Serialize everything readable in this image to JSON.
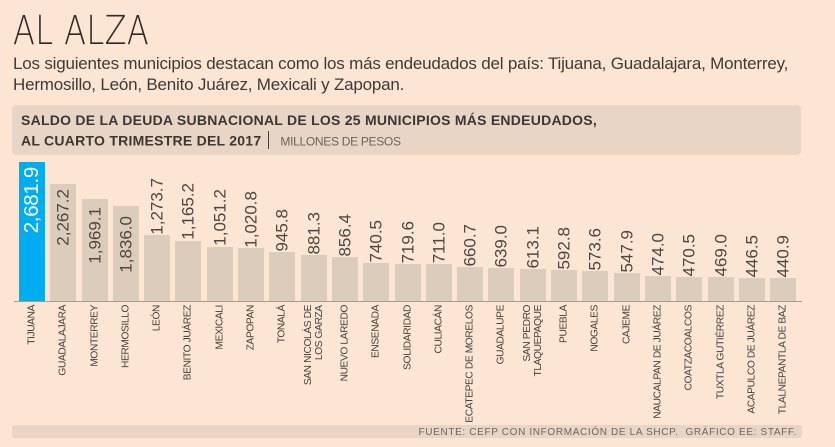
{
  "title": "AL ALZA",
  "intro": {
    "line1": "Los siguientes municipios destacan como los más endeudados del país: Tijuana, Guadalajara, Monterrey,",
    "line2": "Hermosillo, León, Benito Juárez, Mexicali y Zapopan."
  },
  "header": {
    "line1": "SALDO DE LA DEUDA SUBNACIONAL DE LOS 25 MUNICIPIOS MÁS ENDEUDADOS,",
    "line2_bold": "AL CUARTO TRIMESTRE DEL 2017",
    "units": "MILLONES DE PESOS"
  },
  "footer": {
    "source": "FUENTE: CEFP CON INFORMACIÓN DE LA SHCP.  GRÁFICO EE: STAFF."
  },
  "colors": {
    "background": "#fde5d3",
    "band": "#e8d5c5",
    "bar": "#dbccbb",
    "bar_highlight": "#00aeef",
    "axis": "#a59c8f",
    "value_text": "#4e4741",
    "value_text_highlight": "#ffffff",
    "category_text": "#45403a"
  },
  "chart_data": {
    "type": "bar",
    "title": "SALDO DE LA DEUDA SUBNACIONAL DE LOS 25 MUNICIPIOS MÁS ENDEUDADOS, AL CUARTO TRIMESTRE DEL 2017",
    "units": "MILLONES DE PESOS",
    "ylim": [
      0,
      2681.9
    ],
    "grid": false,
    "legend": false,
    "highlighted_category": "TIJUANA",
    "categories": [
      "TIJUANA",
      "GUADALAJARA",
      "MONTERREY",
      "HERMOSILLO",
      "LEÓN",
      "BENITO JUÁREZ",
      "MEXICALI",
      "ZAPOPAN",
      "TONALÁ",
      "SAN NICOLÁS DE LOS GARZA",
      "NUEVO LAREDO",
      "ENSENADA",
      "SOLIDARIDAD",
      "CULIACÁN",
      "ECATEPEC DE MORELOS",
      "GUADALUPE",
      "SAN PEDRO TLAQUEPAQUE",
      "PUEBLA",
      "NOGALES",
      "CAJEME",
      "NAUCALPAN DE JUÁREZ",
      "COATZACOALCOS",
      "TUXTLA GUTIÉRREZ",
      "ACAPULCO DE JUÁREZ",
      "TLALNEPANTLA DE BAZ"
    ],
    "category_lines": [
      [
        "TIJUANA"
      ],
      [
        "GUADALAJARA"
      ],
      [
        "MONTERREY"
      ],
      [
        "HERMOSILLO"
      ],
      [
        "LEÓN"
      ],
      [
        "BENITO JUÁREZ"
      ],
      [
        "MEXICALI"
      ],
      [
        "ZAPOPAN"
      ],
      [
        "TONALÁ"
      ],
      [
        "SAN NICOLÁS DE",
        "LOS GARZA"
      ],
      [
        "NUEVO LAREDO"
      ],
      [
        "ENSENADA"
      ],
      [
        "SOLIDARIDAD"
      ],
      [
        "CULIACÁN"
      ],
      [
        "ECATEPEC DE MORELOS"
      ],
      [
        "GUADALUPE"
      ],
      [
        "SAN PEDRO",
        "TLAQUEPAQUE"
      ],
      [
        "PUEBLA"
      ],
      [
        "NOGALES"
      ],
      [
        "CAJEME"
      ],
      [
        "NAUCALPAN DE JUÁREZ"
      ],
      [
        "COATZACOALCOS"
      ],
      [
        "TUXTLA GUTIÉRREZ"
      ],
      [
        "ACAPULCO DE JUÁREZ"
      ],
      [
        "TLALNEPANTLA DE BAZ"
      ]
    ],
    "values": [
      2681.9,
      2267.2,
      1969.1,
      1836.0,
      1273.7,
      1165.2,
      1051.2,
      1020.8,
      945.8,
      881.3,
      856.4,
      740.5,
      719.6,
      711.0,
      660.7,
      639.0,
      613.1,
      592.8,
      573.6,
      547.9,
      474.0,
      470.5,
      469.0,
      446.5,
      440.9
    ],
    "value_labels": [
      "2,681.9",
      "2,267.2",
      "1,969.1",
      "1,836.0",
      "1,273.7",
      "1,165.2",
      "1,051.2",
      "1,020.8",
      "945.8",
      "881.3",
      "856.4",
      "740.5",
      "719.6",
      "711.0",
      "660.7",
      "639.0",
      "613.1",
      "592.8",
      "573.6",
      "547.9",
      "474.0",
      "470.5",
      "469.0",
      "446.5",
      "440.9"
    ]
  }
}
